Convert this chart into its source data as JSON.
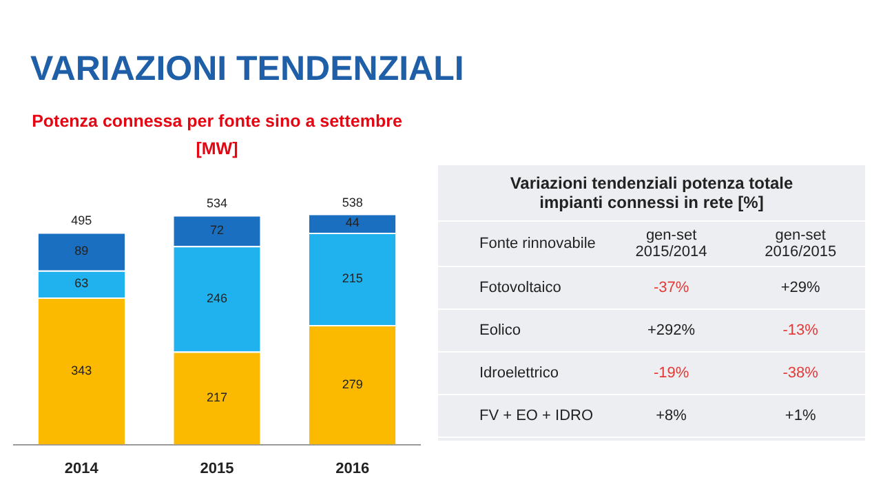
{
  "chart_data": [
    {
      "type": "bar",
      "title": "VARIAZIONI TENDENZIALI",
      "subtitle": "Potenza connessa per fonte sino a settembre\n[MW]",
      "categories": [
        "2014",
        "2015",
        "2016"
      ],
      "stacked": true,
      "data_labels": true,
      "series": [
        {
          "color": "#fbb900",
          "values": [
            343,
            217,
            279
          ]
        },
        {
          "color": "#1fb2ee",
          "values": [
            63,
            246,
            215
          ]
        },
        {
          "color": "#1b6fc0",
          "values": [
            89,
            72,
            44
          ]
        }
      ],
      "totals": [
        "495",
        "534",
        "538"
      ]
    },
    {
      "type": "other",
      "title": "Variazioni tendenziali potenza totale impianti connessi in rete [%]",
      "xlabel": "Fonte rinnovabile",
      "categories": [
        "Fotovoltaico",
        "Eolico",
        "Idroelettrico",
        "FV + EO + IDRO"
      ],
      "series": [
        {
          "name": "gen-set 2015/2014",
          "values": [
            -37,
            292,
            -19,
            8
          ],
          "value_labels": [
            "-37%",
            "+292%",
            "-19%",
            "+8%"
          ]
        },
        {
          "name": "gen-set 2016/2015",
          "values": [
            29,
            -13,
            -38,
            1
          ],
          "value_labels": [
            "+29%",
            "-13%",
            "-38%",
            "+1%"
          ]
        }
      ]
    }
  ]
}
